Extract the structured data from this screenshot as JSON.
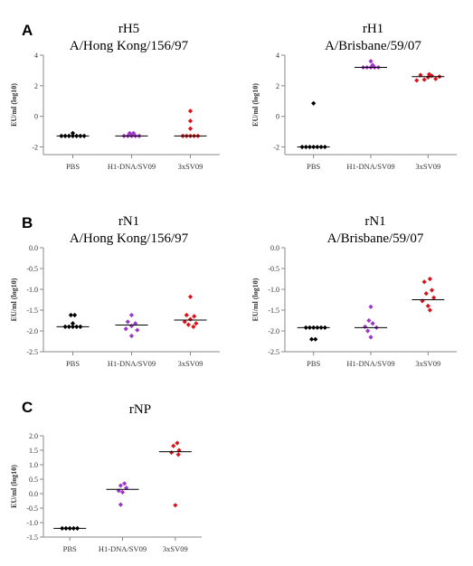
{
  "panel_letters": [
    "A",
    "B",
    "C"
  ],
  "chart_data": [
    {
      "type": "scatter",
      "title": "rH5",
      "subtitle": "A/Hong Kong/156/97",
      "ylabel": "EU/ml (log10)",
      "categories": [
        "PBS",
        "H1-DNA/SV09",
        "3xSV09"
      ],
      "ylim": [
        -2.5,
        4
      ],
      "yticks": [
        4,
        2,
        0,
        -2
      ],
      "points": [
        {
          "cat": 0,
          "y": -1.28,
          "dx": 0
        },
        {
          "cat": 0,
          "y": -1.28,
          "dx": 1
        },
        {
          "cat": 0,
          "y": -1.28,
          "dx": -1
        },
        {
          "cat": 0,
          "y": -1.28,
          "dx": 2
        },
        {
          "cat": 0,
          "y": -1.28,
          "dx": -2
        },
        {
          "cat": 0,
          "y": -1.28,
          "dx": 3
        },
        {
          "cat": 0,
          "y": -1.28,
          "dx": -3
        },
        {
          "cat": 0,
          "y": -1.1,
          "dx": 0
        },
        {
          "cat": 1,
          "y": -1.28,
          "dx": 0
        },
        {
          "cat": 1,
          "y": -1.28,
          "dx": 1
        },
        {
          "cat": 1,
          "y": -1.28,
          "dx": -1
        },
        {
          "cat": 1,
          "y": -1.28,
          "dx": 2
        },
        {
          "cat": 1,
          "y": -1.28,
          "dx": -2
        },
        {
          "cat": 1,
          "y": -1.1,
          "dx": 0.5
        },
        {
          "cat": 1,
          "y": -1.1,
          "dx": -0.5
        },
        {
          "cat": 2,
          "y": -1.28,
          "dx": 0
        },
        {
          "cat": 2,
          "y": -1.28,
          "dx": 1
        },
        {
          "cat": 2,
          "y": -1.28,
          "dx": -1
        },
        {
          "cat": 2,
          "y": -1.28,
          "dx": 2
        },
        {
          "cat": 2,
          "y": -1.28,
          "dx": -2
        },
        {
          "cat": 2,
          "y": -0.8,
          "dx": 0
        },
        {
          "cat": 2,
          "y": -0.3,
          "dx": 0
        },
        {
          "cat": 2,
          "y": 0.35,
          "dx": 0
        }
      ],
      "medians": [
        -1.28,
        -1.28,
        -1.28
      ]
    },
    {
      "type": "scatter",
      "title": "rH1",
      "subtitle": "A/Brisbane/59/07",
      "ylabel": "EU/ml (log10)",
      "categories": [
        "PBS",
        "H1-DNA/SV09",
        "3xSV09"
      ],
      "ylim": [
        -2.5,
        4
      ],
      "yticks": [
        4,
        2,
        0,
        -2
      ],
      "points": [
        {
          "cat": 0,
          "y": -2.0,
          "dx": 0
        },
        {
          "cat": 0,
          "y": -2.0,
          "dx": 1
        },
        {
          "cat": 0,
          "y": -2.0,
          "dx": -1
        },
        {
          "cat": 0,
          "y": -2.0,
          "dx": 2
        },
        {
          "cat": 0,
          "y": -2.0,
          "dx": -2
        },
        {
          "cat": 0,
          "y": -2.0,
          "dx": 3
        },
        {
          "cat": 0,
          "y": -2.0,
          "dx": -3
        },
        {
          "cat": 0,
          "y": 0.85,
          "dx": 0
        },
        {
          "cat": 1,
          "y": 3.2,
          "dx": 0
        },
        {
          "cat": 1,
          "y": 3.2,
          "dx": 1
        },
        {
          "cat": 1,
          "y": 3.2,
          "dx": -1
        },
        {
          "cat": 1,
          "y": 3.2,
          "dx": 2
        },
        {
          "cat": 1,
          "y": 3.2,
          "dx": -2
        },
        {
          "cat": 1,
          "y": 3.35,
          "dx": 0.5
        },
        {
          "cat": 1,
          "y": 3.6,
          "dx": 0
        },
        {
          "cat": 2,
          "y": 2.55,
          "dx": 0
        },
        {
          "cat": 2,
          "y": 2.65,
          "dx": 1
        },
        {
          "cat": 2,
          "y": 2.4,
          "dx": -1
        },
        {
          "cat": 2,
          "y": 2.45,
          "dx": 2
        },
        {
          "cat": 2,
          "y": 2.7,
          "dx": -2
        },
        {
          "cat": 2,
          "y": 2.6,
          "dx": 3
        },
        {
          "cat": 2,
          "y": 2.35,
          "dx": -3
        },
        {
          "cat": 2,
          "y": 2.75,
          "dx": 0.3
        }
      ],
      "medians": [
        -2.0,
        3.2,
        2.6
      ]
    },
    {
      "type": "scatter",
      "title": "rN1",
      "subtitle": "A/Hong Kong/156/97",
      "ylabel": "EU/ml (log10)",
      "categories": [
        "PBS",
        "H1-DNA/SV09",
        "3xSV09"
      ],
      "ylim": [
        -2.5,
        0.0
      ],
      "yticks": [
        "0.0",
        "-0.5",
        "-1.0",
        "-1.5",
        "-2.0",
        "-2.5"
      ],
      "points": [
        {
          "cat": 0,
          "y": -1.9,
          "dx": 0
        },
        {
          "cat": 0,
          "y": -1.9,
          "dx": 1
        },
        {
          "cat": 0,
          "y": -1.9,
          "dx": -1
        },
        {
          "cat": 0,
          "y": -1.9,
          "dx": 2
        },
        {
          "cat": 0,
          "y": -1.9,
          "dx": -2
        },
        {
          "cat": 0,
          "y": -1.82,
          "dx": 0
        },
        {
          "cat": 0,
          "y": -1.62,
          "dx": -0.5
        },
        {
          "cat": 0,
          "y": -1.62,
          "dx": 0.5
        },
        {
          "cat": 1,
          "y": -1.62,
          "dx": 0
        },
        {
          "cat": 1,
          "y": -1.78,
          "dx": -1
        },
        {
          "cat": 1,
          "y": -1.82,
          "dx": 1
        },
        {
          "cat": 1,
          "y": -1.88,
          "dx": 0
        },
        {
          "cat": 1,
          "y": -1.95,
          "dx": -1.5
        },
        {
          "cat": 1,
          "y": -1.98,
          "dx": 1.5
        },
        {
          "cat": 1,
          "y": -2.12,
          "dx": 0
        },
        {
          "cat": 2,
          "y": -1.18,
          "dx": 0
        },
        {
          "cat": 2,
          "y": -1.62,
          "dx": -1
        },
        {
          "cat": 2,
          "y": -1.65,
          "dx": 1
        },
        {
          "cat": 2,
          "y": -1.72,
          "dx": 0
        },
        {
          "cat": 2,
          "y": -1.78,
          "dx": -1.5
        },
        {
          "cat": 2,
          "y": -1.82,
          "dx": 1.5
        },
        {
          "cat": 2,
          "y": -1.85,
          "dx": -0.5
        },
        {
          "cat": 2,
          "y": -1.9,
          "dx": 0.8
        }
      ],
      "medians": [
        -1.9,
        -1.86,
        -1.74
      ]
    },
    {
      "type": "scatter",
      "title": "rN1",
      "subtitle": "A/Brisbane/59/07",
      "ylabel": "EU/ml (log10)",
      "categories": [
        "PBS",
        "H1-DNA/SV09",
        "3xSV09"
      ],
      "ylim": [
        -2.5,
        0.0
      ],
      "yticks": [
        "0.0",
        "-0.5",
        "-1.0",
        "-1.5",
        "-2.0",
        "-2.5"
      ],
      "points": [
        {
          "cat": 0,
          "y": -1.92,
          "dx": 0
        },
        {
          "cat": 0,
          "y": -1.92,
          "dx": 1
        },
        {
          "cat": 0,
          "y": -1.92,
          "dx": -1
        },
        {
          "cat": 0,
          "y": -1.92,
          "dx": 2
        },
        {
          "cat": 0,
          "y": -1.92,
          "dx": -2
        },
        {
          "cat": 0,
          "y": -1.92,
          "dx": 3
        },
        {
          "cat": 0,
          "y": -2.2,
          "dx": -0.5
        },
        {
          "cat": 0,
          "y": -2.2,
          "dx": 0.5
        },
        {
          "cat": 1,
          "y": -1.42,
          "dx": 0
        },
        {
          "cat": 1,
          "y": -1.75,
          "dx": -0.5
        },
        {
          "cat": 1,
          "y": -1.82,
          "dx": 0.5
        },
        {
          "cat": 1,
          "y": -1.9,
          "dx": -1.5
        },
        {
          "cat": 1,
          "y": -1.92,
          "dx": 1.5
        },
        {
          "cat": 1,
          "y": -2.0,
          "dx": -0.8
        },
        {
          "cat": 1,
          "y": -2.15,
          "dx": 0
        },
        {
          "cat": 2,
          "y": -0.75,
          "dx": 0.5
        },
        {
          "cat": 2,
          "y": -0.82,
          "dx": -1
        },
        {
          "cat": 2,
          "y": -1.02,
          "dx": 1
        },
        {
          "cat": 2,
          "y": -1.1,
          "dx": -0.5
        },
        {
          "cat": 2,
          "y": -1.2,
          "dx": 1.5
        },
        {
          "cat": 2,
          "y": -1.28,
          "dx": -1.5
        },
        {
          "cat": 2,
          "y": -1.4,
          "dx": 0
        },
        {
          "cat": 2,
          "y": -1.5,
          "dx": 0.5
        }
      ],
      "medians": [
        -1.92,
        -1.92,
        -1.25
      ]
    },
    {
      "type": "scatter",
      "title": "rNP",
      "subtitle": "",
      "ylabel": "EU/ml (log10)",
      "categories": [
        "PBS",
        "H1-DNA/SV09",
        "3xSV09"
      ],
      "ylim": [
        -1.5,
        2.0
      ],
      "yticks": [
        "2.0",
        "1.5",
        "1.0",
        "0.5",
        "0.0",
        "-0.5",
        "-1.0",
        "-1.5"
      ],
      "points": [
        {
          "cat": 0,
          "y": -1.2,
          "dx": 0
        },
        {
          "cat": 0,
          "y": -1.2,
          "dx": 1
        },
        {
          "cat": 0,
          "y": -1.2,
          "dx": -1
        },
        {
          "cat": 0,
          "y": -1.2,
          "dx": 2
        },
        {
          "cat": 0,
          "y": -1.2,
          "dx": -2
        },
        {
          "cat": 1,
          "y": 0.35,
          "dx": 0.5
        },
        {
          "cat": 1,
          "y": 0.28,
          "dx": -0.5
        },
        {
          "cat": 1,
          "y": 0.2,
          "dx": 1
        },
        {
          "cat": 1,
          "y": 0.1,
          "dx": -1
        },
        {
          "cat": 1,
          "y": 0.05,
          "dx": 0
        },
        {
          "cat": 1,
          "y": -0.38,
          "dx": -0.5
        },
        {
          "cat": 2,
          "y": 1.75,
          "dx": 0.5
        },
        {
          "cat": 2,
          "y": 1.65,
          "dx": -0.5
        },
        {
          "cat": 2,
          "y": 1.5,
          "dx": 1
        },
        {
          "cat": 2,
          "y": 1.42,
          "dx": -1
        },
        {
          "cat": 2,
          "y": 1.35,
          "dx": 0.8
        },
        {
          "cat": 2,
          "y": -0.4,
          "dx": 0
        }
      ],
      "medians": [
        -1.2,
        0.15,
        1.45
      ]
    }
  ],
  "colors": {
    "PBS": "#000000",
    "H1-DNA/SV09": "#9d35c8",
    "3xSV09": "#d8141b",
    "axis": "#888888",
    "median": "#000000"
  }
}
